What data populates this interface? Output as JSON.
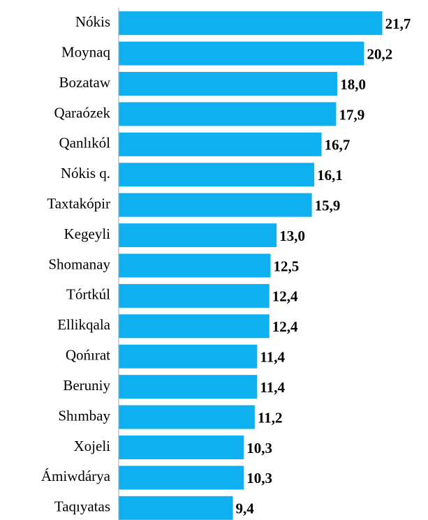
{
  "chart_data": {
    "type": "bar",
    "orientation": "horizontal",
    "categories": [
      "Nókis",
      "Moynaq",
      "Bozataw",
      "Qaraózek",
      "Qanlıkól",
      "Nókis q.",
      "Taxtakópir",
      "Kegeyli",
      "Shomanay",
      "Tórtkúl",
      "Ellikqala",
      "Qońırat",
      "Beruniy",
      "Shımbay",
      "Xojeli",
      "Ámiwdárya",
      "Taqıyatas"
    ],
    "values": [
      21.7,
      20.2,
      18.0,
      17.9,
      16.7,
      16.1,
      15.9,
      13.0,
      12.5,
      12.4,
      12.4,
      11.4,
      11.4,
      11.2,
      10.3,
      10.3,
      9.4
    ],
    "value_labels": [
      "21,7",
      "20,2",
      "18,0",
      "17,9",
      "16,7",
      "16,1",
      "15,9",
      "13,0",
      "12,5",
      "12,4",
      "12,4",
      "11,4",
      "11,4",
      "11,2",
      "10,3",
      "10,3",
      "9,4"
    ],
    "color": "#0fb0f0",
    "xlim": [
      0,
      25
    ]
  }
}
